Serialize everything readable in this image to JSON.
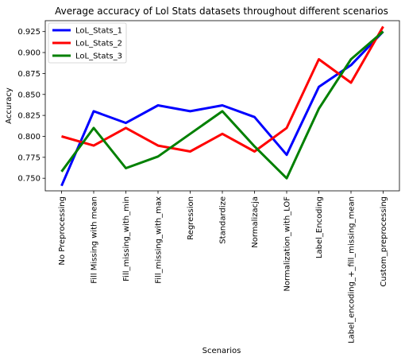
{
  "chart_data": {
    "type": "line",
    "title": "Average accuracy of Lol Stats datasets throughout different scenarios",
    "xlabel": "Scenarios",
    "ylabel": "Accuracy",
    "ylim": [
      0.735,
      0.938
    ],
    "yticks": [
      0.75,
      0.775,
      0.8,
      0.825,
      0.85,
      0.875,
      0.9,
      0.925
    ],
    "ytick_labels": [
      "0.750",
      "0.775",
      "0.800",
      "0.825",
      "0.850",
      "0.875",
      "0.900",
      "0.925"
    ],
    "grid": false,
    "legend_position": "top-left",
    "categories": [
      "No Preprocessing",
      "Fill Missing with mean",
      "Fill_missing_with_min",
      "Fill_missing_with_max",
      "Regression",
      "Standardize",
      "Normalizacja",
      "Normalization_with_LOF",
      "Label_Encoding",
      "Label_encoding_+_fill_missing_mean",
      "Custom_preprocessing"
    ],
    "series": [
      {
        "name": "LoL_Stats_1",
        "color": "#0000ff",
        "values": [
          0.741,
          0.83,
          0.816,
          0.837,
          0.83,
          0.837,
          0.823,
          0.778,
          0.859,
          0.885,
          0.925
        ]
      },
      {
        "name": "LoL_Stats_2",
        "color": "#ff0000",
        "values": [
          0.8,
          0.789,
          0.81,
          0.789,
          0.782,
          0.803,
          0.782,
          0.81,
          0.892,
          0.864,
          0.931
        ]
      },
      {
        "name": "LoL_Stats_3",
        "color": "#008000",
        "values": [
          0.758,
          0.81,
          0.762,
          0.776,
          0.803,
          0.83,
          0.788,
          0.75,
          0.833,
          0.892,
          0.925
        ]
      }
    ]
  }
}
